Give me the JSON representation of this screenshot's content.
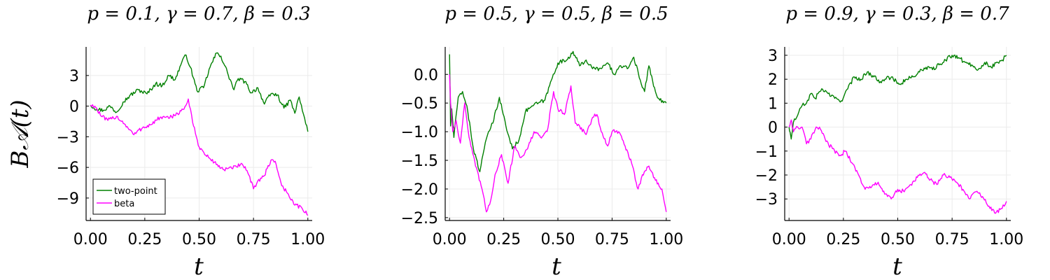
{
  "chart_data": [
    {
      "type": "line",
      "title": "p = 0.1, γ = 0.7, β = 0.3",
      "xlabel": "t",
      "ylabel": "B𝒜(t)",
      "xlim": [
        -0.02,
        1.02
      ],
      "ylim": [
        -11.2,
        5.8
      ],
      "xticks": [
        0.0,
        0.25,
        0.5,
        0.75,
        1.0
      ],
      "xtick_labels": [
        "0.00",
        "0.25",
        "0.50",
        "0.75",
        "1.00"
      ],
      "yticks": [
        3,
        0,
        -3,
        -6,
        -9
      ],
      "ytick_labels": [
        "3",
        "0",
        "−3",
        "−6",
        "−9"
      ],
      "grid": true,
      "legend": "bottom-left",
      "series": [
        {
          "name": "two-point",
          "color": "#008000",
          "x": [
            0.0,
            0.03,
            0.06,
            0.09,
            0.12,
            0.15,
            0.18,
            0.22,
            0.26,
            0.3,
            0.33,
            0.36,
            0.39,
            0.42,
            0.44,
            0.46,
            0.49,
            0.52,
            0.55,
            0.58,
            0.6,
            0.63,
            0.66,
            0.68,
            0.71,
            0.74,
            0.77,
            0.8,
            0.83,
            0.86,
            0.89,
            0.92,
            0.94,
            0.96,
            0.98,
            1.0
          ],
          "y": [
            0.1,
            -0.3,
            -0.4,
            0.0,
            -0.6,
            0.4,
            1.0,
            1.6,
            1.2,
            2.2,
            2.0,
            3.0,
            2.6,
            4.3,
            5.0,
            3.8,
            1.5,
            1.8,
            3.8,
            5.2,
            4.9,
            3.3,
            1.6,
            2.7,
            2.4,
            1.3,
            1.8,
            0.2,
            1.2,
            1.1,
            -0.2,
            0.6,
            -0.7,
            0.9,
            -0.8,
            -2.5
          ]
        },
        {
          "name": "beta",
          "color": "#ff00ff",
          "x": [
            0.0,
            0.02,
            0.05,
            0.08,
            0.12,
            0.16,
            0.2,
            0.24,
            0.28,
            0.32,
            0.36,
            0.4,
            0.43,
            0.45,
            0.47,
            0.5,
            0.53,
            0.57,
            0.61,
            0.65,
            0.69,
            0.72,
            0.75,
            0.77,
            0.8,
            0.83,
            0.85,
            0.88,
            0.91,
            0.94,
            0.97,
            1.0
          ],
          "y": [
            0.1,
            0.0,
            -1.0,
            -1.4,
            -1.0,
            -1.8,
            -2.8,
            -2.1,
            -1.8,
            -1.1,
            -1.2,
            -0.7,
            -0.3,
            0.7,
            -1.6,
            -4.0,
            -4.8,
            -5.5,
            -6.2,
            -6.1,
            -5.7,
            -6.3,
            -8.1,
            -7.3,
            -6.8,
            -5.3,
            -5.4,
            -7.8,
            -8.6,
            -9.7,
            -9.9,
            -10.7
          ]
        }
      ]
    },
    {
      "type": "line",
      "title": "p = 0.5, γ = 0.5, β = 0.5",
      "xlabel": "t",
      "ylabel": "",
      "xlim": [
        -0.02,
        1.02
      ],
      "ylim": [
        -2.55,
        0.48
      ],
      "xticks": [
        0.0,
        0.25,
        0.5,
        0.75,
        1.0
      ],
      "xtick_labels": [
        "0.00",
        "0.25",
        "0.50",
        "0.75",
        "1.00"
      ],
      "yticks": [
        0.0,
        -0.5,
        -1.0,
        -1.5,
        -2.0,
        -2.5
      ],
      "ytick_labels": [
        "0.0",
        "−0.5",
        "−1.0",
        "−1.5",
        "−2.0",
        "−2.5"
      ],
      "grid": true,
      "legend": "none",
      "series": [
        {
          "name": "two-point",
          "color": "#008000",
          "x": [
            0.0,
            0.005,
            0.01,
            0.02,
            0.04,
            0.06,
            0.08,
            0.11,
            0.14,
            0.16,
            0.18,
            0.2,
            0.23,
            0.26,
            0.29,
            0.32,
            0.35,
            0.38,
            0.41,
            0.44,
            0.47,
            0.5,
            0.54,
            0.57,
            0.6,
            0.63,
            0.66,
            0.7,
            0.73,
            0.76,
            0.79,
            0.82,
            0.85,
            0.88,
            0.9,
            0.92,
            0.95,
            0.97,
            1.0
          ],
          "y": [
            0.35,
            -0.9,
            -0.6,
            -1.1,
            -0.4,
            -0.3,
            -0.55,
            -1.3,
            -1.7,
            -1.3,
            -1.0,
            -0.85,
            -0.4,
            -0.9,
            -1.3,
            -1.15,
            -0.65,
            -0.55,
            -0.5,
            -0.45,
            -0.1,
            0.2,
            0.25,
            0.4,
            0.15,
            0.25,
            0.1,
            0.1,
            0.2,
            0.0,
            0.15,
            0.1,
            0.3,
            -0.1,
            -0.3,
            0.15,
            -0.3,
            -0.45,
            -0.5
          ]
        },
        {
          "name": "beta",
          "color": "#ff00ff",
          "x": [
            0.0,
            0.005,
            0.015,
            0.03,
            0.05,
            0.07,
            0.09,
            0.12,
            0.15,
            0.17,
            0.19,
            0.21,
            0.24,
            0.27,
            0.3,
            0.33,
            0.36,
            0.39,
            0.42,
            0.45,
            0.48,
            0.5,
            0.53,
            0.56,
            0.58,
            0.6,
            0.63,
            0.66,
            0.68,
            0.7,
            0.73,
            0.75,
            0.78,
            0.81,
            0.84,
            0.87,
            0.89,
            0.92,
            0.95,
            0.98,
            1.0
          ],
          "y": [
            0.0,
            -0.5,
            -1.0,
            -0.8,
            -1.2,
            -0.5,
            -1.1,
            -1.6,
            -2.0,
            -2.4,
            -2.2,
            -1.75,
            -1.4,
            -1.9,
            -1.25,
            -1.45,
            -1.3,
            -1.0,
            -1.1,
            -1.0,
            -0.3,
            -0.6,
            -0.7,
            -0.2,
            -0.85,
            -0.9,
            -1.05,
            -0.75,
            -0.7,
            -1.0,
            -1.25,
            -1.0,
            -1.0,
            -1.25,
            -1.55,
            -2.0,
            -1.75,
            -1.6,
            -1.85,
            -2.0,
            -2.4
          ]
        }
      ]
    },
    {
      "type": "line",
      "title": "p = 0.9, γ = 0.3, β = 0.7",
      "xlabel": "t",
      "ylabel": "",
      "xlim": [
        -0.02,
        1.02
      ],
      "ylim": [
        -3.9,
        3.35
      ],
      "xticks": [
        0.0,
        0.25,
        0.5,
        0.75,
        1.0
      ],
      "xtick_labels": [
        "0.00",
        "0.25",
        "0.50",
        "0.75",
        "1.00"
      ],
      "yticks": [
        3,
        2,
        1,
        0,
        -1,
        -2,
        -3
      ],
      "ytick_labels": [
        "3",
        "2",
        "1",
        "0",
        "−1",
        "−2",
        "−3"
      ],
      "grid": true,
      "legend": "none",
      "series": [
        {
          "name": "two-point",
          "color": "#008000",
          "x": [
            0.0,
            0.01,
            0.02,
            0.04,
            0.06,
            0.08,
            0.1,
            0.12,
            0.15,
            0.18,
            0.21,
            0.24,
            0.27,
            0.3,
            0.33,
            0.36,
            0.39,
            0.42,
            0.45,
            0.48,
            0.51,
            0.54,
            0.57,
            0.6,
            0.63,
            0.66,
            0.69,
            0.72,
            0.75,
            0.78,
            0.81,
            0.84,
            0.87,
            0.9,
            0.93,
            0.96,
            0.98,
            1.0
          ],
          "y": [
            0.0,
            -0.5,
            0.2,
            0.5,
            0.9,
            1.0,
            1.4,
            1.2,
            1.6,
            1.4,
            1.2,
            1.1,
            1.6,
            2.1,
            2.0,
            2.3,
            2.1,
            1.9,
            2.1,
            2.0,
            1.8,
            2.0,
            2.1,
            2.3,
            2.5,
            2.4,
            2.6,
            2.8,
            3.0,
            2.9,
            2.7,
            2.6,
            2.4,
            2.7,
            2.5,
            2.7,
            2.8,
            3.0
          ]
        },
        {
          "name": "beta",
          "color": "#ff00ff",
          "x": [
            0.0,
            0.01,
            0.02,
            0.04,
            0.06,
            0.08,
            0.1,
            0.12,
            0.14,
            0.17,
            0.2,
            0.23,
            0.26,
            0.29,
            0.32,
            0.35,
            0.38,
            0.41,
            0.44,
            0.47,
            0.5,
            0.53,
            0.56,
            0.59,
            0.62,
            0.65,
            0.68,
            0.71,
            0.74,
            0.77,
            0.8,
            0.83,
            0.86,
            0.89,
            0.92,
            0.95,
            0.98,
            1.0
          ],
          "y": [
            0.0,
            0.3,
            -0.2,
            0.0,
            0.0,
            -0.7,
            -0.5,
            -0.1,
            0.0,
            -0.6,
            -0.9,
            -1.2,
            -1.0,
            -1.5,
            -2.0,
            -2.6,
            -2.5,
            -2.3,
            -2.8,
            -3.0,
            -2.6,
            -2.7,
            -2.4,
            -2.1,
            -1.9,
            -2.2,
            -2.4,
            -2.0,
            -2.1,
            -2.3,
            -2.6,
            -3.0,
            -2.7,
            -2.9,
            -3.3,
            -3.6,
            -3.4,
            -3.1
          ]
        }
      ]
    }
  ]
}
